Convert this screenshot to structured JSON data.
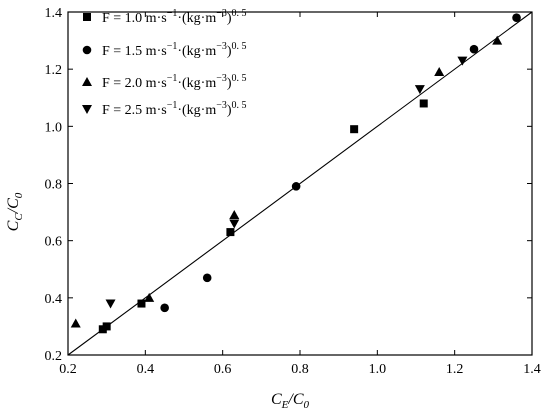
{
  "chart_data": {
    "type": "scatter",
    "xlabel": "C_E/C_0",
    "ylabel": "C_C/C_0",
    "xlim": [
      0.2,
      1.4
    ],
    "ylim": [
      0.2,
      1.4
    ],
    "xticks": [
      0.2,
      0.4,
      0.6,
      0.8,
      1.0,
      1.2,
      1.4
    ],
    "yticks": [
      0.2,
      0.4,
      0.6,
      0.8,
      1.0,
      1.2,
      1.4
    ],
    "xtick_labels": [
      "0.2",
      "0.4",
      "0.6",
      "0.8",
      "1.0",
      "1.2",
      "1.4"
    ],
    "ytick_labels": [
      "0.2",
      "0.4",
      "0.6",
      "0.8",
      "1.0",
      "1.2",
      "1.4"
    ],
    "legend_position": "top-left",
    "reference_line": {
      "x": [
        0.2,
        1.4
      ],
      "y": [
        0.2,
        1.4
      ]
    },
    "series": [
      {
        "name": "F = 1.0  m·s−1·(kg·m−3)0.5",
        "marker": "square",
        "points": [
          [
            0.29,
            0.29
          ],
          [
            0.3,
            0.3
          ],
          [
            0.39,
            0.38
          ],
          [
            0.62,
            0.63
          ],
          [
            0.94,
            0.99
          ],
          [
            1.12,
            1.08
          ]
        ]
      },
      {
        "name": "F = 1.5  m·s−1·(kg·m−3)0.5",
        "marker": "circle",
        "points": [
          [
            0.45,
            0.365
          ],
          [
            0.56,
            0.47
          ],
          [
            0.79,
            0.79
          ],
          [
            1.25,
            1.27
          ],
          [
            1.36,
            1.38
          ]
        ]
      },
      {
        "name": "F = 2.0  m·s−1·(kg·m−3)0.5",
        "marker": "triangle-up",
        "points": [
          [
            0.22,
            0.31
          ],
          [
            0.41,
            0.4
          ],
          [
            0.63,
            0.69
          ],
          [
            1.16,
            1.19
          ],
          [
            1.31,
            1.3
          ]
        ]
      },
      {
        "name": "F = 2.5 m·s−1·(kg·m−3)0.5",
        "marker": "triangle-down",
        "points": [
          [
            0.31,
            0.38
          ],
          [
            0.63,
            0.66
          ],
          [
            1.11,
            1.13
          ],
          [
            1.22,
            1.23
          ]
        ]
      }
    ]
  },
  "legend": [
    {
      "prefix": "F = 1.0  m·s",
      "exp1": "−1",
      "mid": "·(kg·m",
      "exp2": "−3",
      "close": ")",
      "exp3": "0. 5"
    },
    {
      "prefix": "F = 1.5  m·s",
      "exp1": "−1",
      "mid": "·(kg·m",
      "exp2": "−3",
      "close": ")",
      "exp3": "0. 5"
    },
    {
      "prefix": "F = 2.0  m·s",
      "exp1": "−1",
      "mid": "·(kg·m",
      "exp2": "−3",
      "close": ")",
      "exp3": "0. 5"
    },
    {
      "prefix": "F = 2.5 m·s",
      "exp1": "−1",
      "mid": "·(kg·m",
      "exp2": "−3",
      "close": ")",
      "exp3": "0. 5"
    }
  ],
  "axis_labels": {
    "x": {
      "main": "C",
      "sub1": "E",
      "slash": "/C",
      "sub2": "0"
    },
    "y": {
      "main": "C",
      "sub1": "C",
      "slash": "/C",
      "sub2": "0"
    }
  },
  "colors": {
    "marker": "#000000",
    "line": "#000000",
    "axis": "#000000",
    "background": "#ffffff"
  }
}
